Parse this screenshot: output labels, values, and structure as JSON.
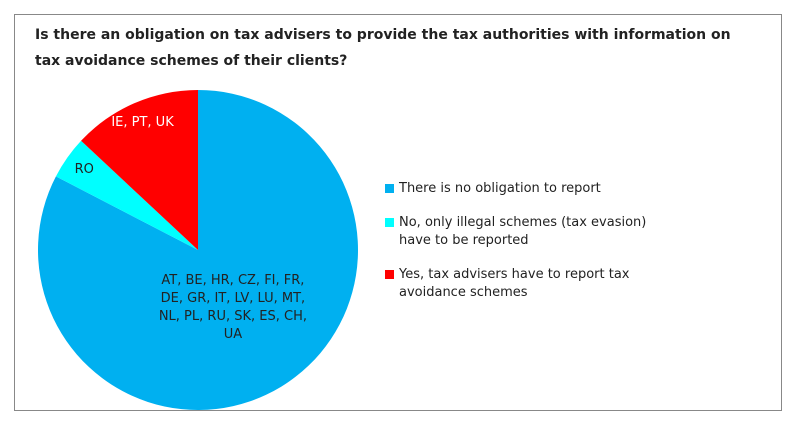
{
  "chart_data": {
    "type": "pie",
    "title": "Is there an obligation on tax advisers to provide the tax authorities with information on tax avoidance schemes of their clients?",
    "categories": [
      "There is no obligation to report",
      "No, only illegal schemes (tax evasion) have to be reported",
      "Yes, tax advisers have to report tax avoidance schemes"
    ],
    "values": [
      19,
      1,
      3
    ],
    "colors": [
      "#00b0f0",
      "#00ffff",
      "#ff0000"
    ],
    "slice_labels": [
      [
        "AT, BE, HR, CZ, FI, FR,",
        "DE, GR, IT, LV, LU, MT,",
        "NL, PL, RU, SK, ES, CH,",
        "UA"
      ],
      [
        "RO"
      ],
      [
        "IE, PT, UK"
      ]
    ],
    "legend": "right"
  }
}
